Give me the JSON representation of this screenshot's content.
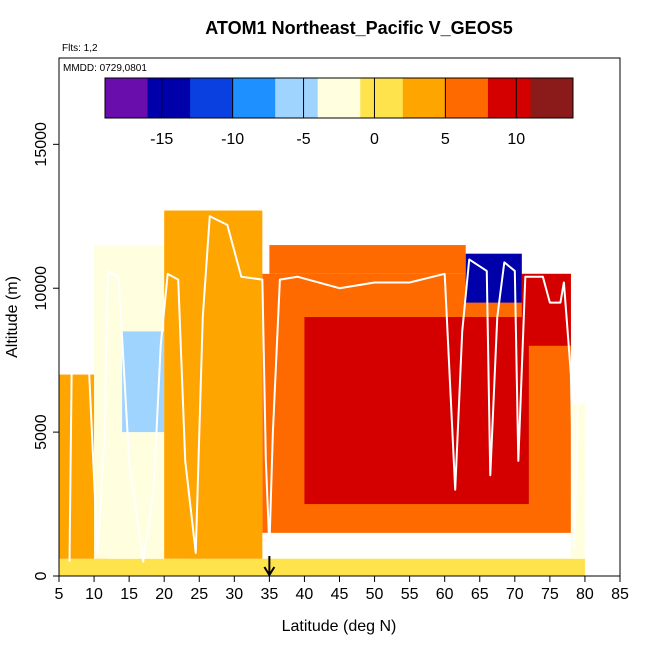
{
  "chart_data": {
    "type": "heatmap",
    "title": "ATOM1 Northeast_Pacific V_GEOS5",
    "flights_label": "Flts: 1,2",
    "dates_label": "MMDD: 0729,0801",
    "xlabel": "Latitude (deg N)",
    "ylabel": "Altitude (m)",
    "xlim": [
      5,
      85
    ],
    "ylim": [
      0,
      18000
    ],
    "x_ticks": [
      "5",
      "10",
      "15",
      "20",
      "25",
      "30",
      "35",
      "40",
      "45",
      "50",
      "55",
      "60",
      "65",
      "70",
      "75",
      "80",
      "85"
    ],
    "y_ticks": [
      "0",
      "5000",
      "10000",
      "15000"
    ],
    "colorbar": {
      "range": [
        -19,
        14
      ],
      "ticks": [
        "-15",
        "-10",
        "-5",
        "0",
        "5",
        "10"
      ],
      "colors": [
        "#6a0dad",
        "#0000aa",
        "#0a3fe0",
        "#1e90ff",
        "#9fd4ff",
        "#ffffe0",
        "#ffe34d",
        "#ffa500",
        "#ff6a00",
        "#d40000",
        "#8b1a1a"
      ]
    },
    "marker_latitude": 35,
    "heatmap_regions": [
      {
        "lat": [
          5,
          80
        ],
        "alt": [
          0,
          600
        ],
        "value": -1
      },
      {
        "lat": [
          5,
          12
        ],
        "alt": [
          600,
          7000
        ],
        "value": 3
      },
      {
        "lat": [
          10,
          23
        ],
        "alt": [
          600,
          11500
        ],
        "value": -2
      },
      {
        "lat": [
          14,
          20
        ],
        "alt": [
          5000,
          8500
        ],
        "value": -6
      },
      {
        "lat": [
          20,
          34
        ],
        "alt": [
          600,
          12700
        ],
        "value": 2
      },
      {
        "lat": [
          34,
          78
        ],
        "alt": [
          1500,
          10500
        ],
        "value": 5
      },
      {
        "lat": [
          40,
          72
        ],
        "alt": [
          2500,
          9000
        ],
        "value": 8
      },
      {
        "lat": [
          55,
          65
        ],
        "alt": [
          3000,
          9000
        ],
        "value": 10
      },
      {
        "lat": [
          35,
          63
        ],
        "alt": [
          10500,
          11500
        ],
        "value": 6
      },
      {
        "lat": [
          63,
          71
        ],
        "alt": [
          9500,
          11200
        ],
        "value": -14
      },
      {
        "lat": [
          71,
          78
        ],
        "alt": [
          8000,
          10500
        ],
        "value": 9
      },
      {
        "lat": [
          78,
          80
        ],
        "alt": [
          600,
          6000
        ],
        "value": -3
      }
    ],
    "flight_track": [
      [
        6.5,
        500
      ],
      [
        6.8,
        7000
      ],
      [
        7.2,
        11400
      ],
      [
        8.5,
        11300
      ],
      [
        9.5,
        6000
      ],
      [
        10.5,
        800
      ],
      [
        11.5,
        5000
      ],
      [
        12,
        10600
      ],
      [
        13.5,
        10400
      ],
      [
        15,
        4000
      ],
      [
        17,
        500
      ],
      [
        18.5,
        3000
      ],
      [
        19.5,
        8000
      ],
      [
        20.5,
        10500
      ],
      [
        22,
        10300
      ],
      [
        23,
        4000
      ],
      [
        24.5,
        800
      ],
      [
        25.5,
        9000
      ],
      [
        26.5,
        12500
      ],
      [
        29,
        12200
      ],
      [
        31,
        10400
      ],
      [
        34,
        10300
      ],
      [
        34.5,
        4000
      ],
      [
        35,
        1000
      ],
      [
        35.5,
        5000
      ],
      [
        36.5,
        10300
      ],
      [
        39,
        10400
      ],
      [
        45,
        10000
      ],
      [
        50,
        10200
      ],
      [
        55,
        10200
      ],
      [
        60,
        10500
      ],
      [
        61.5,
        3000
      ],
      [
        62.5,
        8500
      ],
      [
        63.5,
        11000
      ],
      [
        66,
        10600
      ],
      [
        66.5,
        3500
      ],
      [
        67.5,
        9000
      ],
      [
        68.5,
        10900
      ],
      [
        70,
        10600
      ],
      [
        70.5,
        4000
      ],
      [
        71.5,
        10400
      ],
      [
        74,
        10400
      ],
      [
        75,
        9500
      ],
      [
        76.5,
        9500
      ],
      [
        77,
        10200
      ],
      [
        78,
        7000
      ],
      [
        78.5,
        1000
      ],
      [
        79,
        6000
      ],
      [
        79.2,
        9000
      ]
    ]
  }
}
